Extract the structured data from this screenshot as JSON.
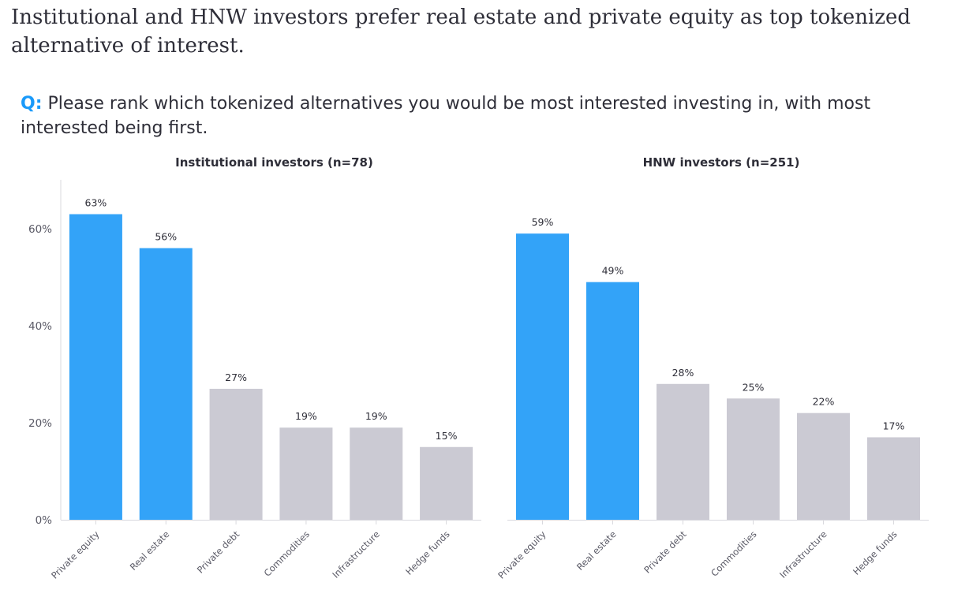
{
  "headline": "Institutional and HNW investors prefer real estate and private equity as top tokenized alternative of interest.",
  "question": {
    "prefix": "Q:",
    "text": " Please rank which tokenized alternatives you would be most interested investing in, with most interested being first."
  },
  "colors": {
    "highlight": "#33a3f8",
    "muted": "#cbcad3",
    "axis": "#d9d9de",
    "question_prefix": "#1a9afa"
  },
  "chart_data": [
    {
      "type": "bar",
      "title": "Institutional investors (n=78)",
      "categories": [
        "Private equity",
        "Real estate",
        "Private debt",
        "Commodities",
        "Infrastructure",
        "Hedge funds"
      ],
      "values": [
        63,
        56,
        27,
        19,
        19,
        15
      ],
      "data_labels": [
        "63%",
        "56%",
        "27%",
        "19%",
        "19%",
        "15%"
      ],
      "highlighted": [
        true,
        true,
        false,
        false,
        false,
        false
      ],
      "ylim": [
        0,
        70
      ],
      "yticks": [
        0,
        20,
        40,
        60
      ],
      "ytick_labels": [
        "0%",
        "20%",
        "40%",
        "60%"
      ],
      "show_y_axis": true
    },
    {
      "type": "bar",
      "title": "HNW investors (n=251)",
      "categories": [
        "Private equity",
        "Real estate",
        "Private debt",
        "Commodities",
        "Infrastructure",
        "Hedge funds"
      ],
      "values": [
        59,
        49,
        28,
        25,
        22,
        17
      ],
      "data_labels": [
        "59%",
        "49%",
        "28%",
        "25%",
        "22%",
        "17%"
      ],
      "highlighted": [
        true,
        true,
        false,
        false,
        false,
        false
      ],
      "ylim": [
        0,
        70
      ],
      "show_y_axis": false
    }
  ]
}
